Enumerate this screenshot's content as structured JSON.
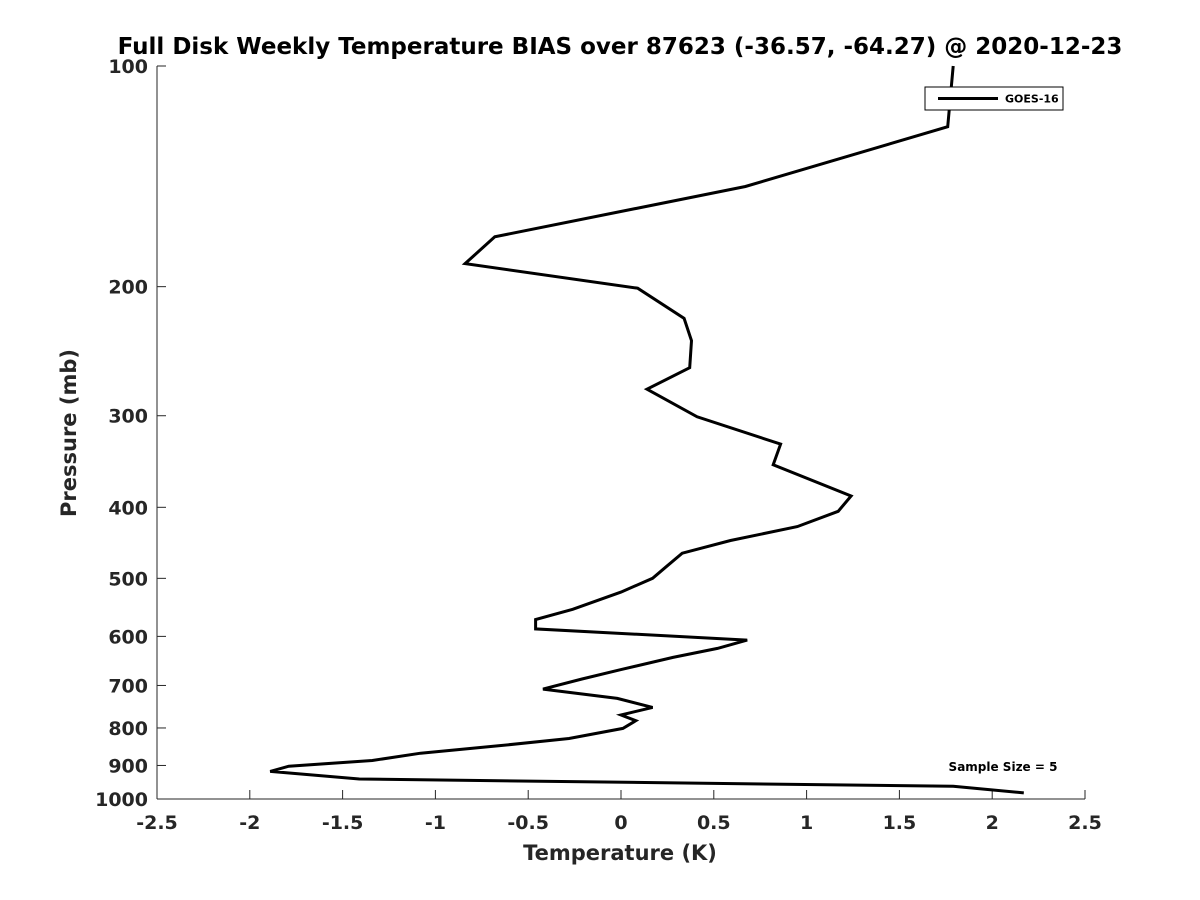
{
  "chart_data": {
    "type": "line",
    "title": "Full Disk Weekly Temperature BIAS over 87623 (-36.57, -64.27) @ 2020-12-23",
    "xlabel": "Temperature (K)",
    "ylabel": "Pressure (mb)",
    "xlim": [
      -2.5,
      2.5
    ],
    "ylim": [
      1000,
      100
    ],
    "y_scale": "log",
    "y_reversed": true,
    "x_ticks": [
      "-2.5",
      "-2",
      "-1.5",
      "-1",
      "-0.5",
      "0",
      "0.5",
      "1",
      "1.5",
      "2",
      "2.5"
    ],
    "x_tick_values": [
      -2.5,
      -2,
      -1.5,
      -1,
      -0.5,
      0,
      0.5,
      1,
      1.5,
      2,
      2.5
    ],
    "y_ticks": [
      "100",
      "200",
      "300",
      "400",
      "500",
      "600",
      "700",
      "800",
      "900",
      "1000"
    ],
    "y_tick_values": [
      100,
      200,
      300,
      400,
      500,
      600,
      700,
      800,
      900,
      1000
    ],
    "grid": false,
    "legend_position": "top-right",
    "annotation": "Sample Size = 5",
    "series": [
      {
        "name": "GOES-16",
        "color": "#000000",
        "points": [
          [
            1.79,
            100
          ],
          [
            1.76,
            121
          ],
          [
            0.67,
            146
          ],
          [
            -0.68,
            171
          ],
          [
            -0.84,
            186
          ],
          [
            0.09,
            201
          ],
          [
            0.34,
            221
          ],
          [
            0.38,
            237
          ],
          [
            0.37,
            258
          ],
          [
            0.14,
            276
          ],
          [
            0.41,
            301
          ],
          [
            0.86,
            328
          ],
          [
            0.82,
            350
          ],
          [
            1.24,
            386
          ],
          [
            1.17,
            405
          ],
          [
            0.95,
            425
          ],
          [
            0.59,
            444
          ],
          [
            0.33,
            462
          ],
          [
            0.24,
            483
          ],
          [
            0.17,
            500
          ],
          [
            0.0,
            522
          ],
          [
            -0.26,
            551
          ],
          [
            -0.46,
            569
          ],
          [
            -0.46,
            586
          ],
          [
            0.68,
            607
          ],
          [
            0.52,
            623
          ],
          [
            0.28,
            641
          ],
          [
            0.0,
            666
          ],
          [
            -0.21,
            686
          ],
          [
            -0.42,
            708
          ],
          [
            -0.02,
            729
          ],
          [
            0.17,
            750
          ],
          [
            0.0,
            768
          ],
          [
            0.08,
            782
          ],
          [
            0.01,
            801
          ],
          [
            -0.28,
            827
          ],
          [
            -0.66,
            846
          ],
          [
            -1.08,
            866
          ],
          [
            -1.34,
            886
          ],
          [
            -1.79,
            902
          ],
          [
            -1.89,
            917
          ],
          [
            -1.41,
            939
          ],
          [
            1.79,
            961
          ],
          [
            2.17,
            981
          ]
        ]
      }
    ]
  }
}
